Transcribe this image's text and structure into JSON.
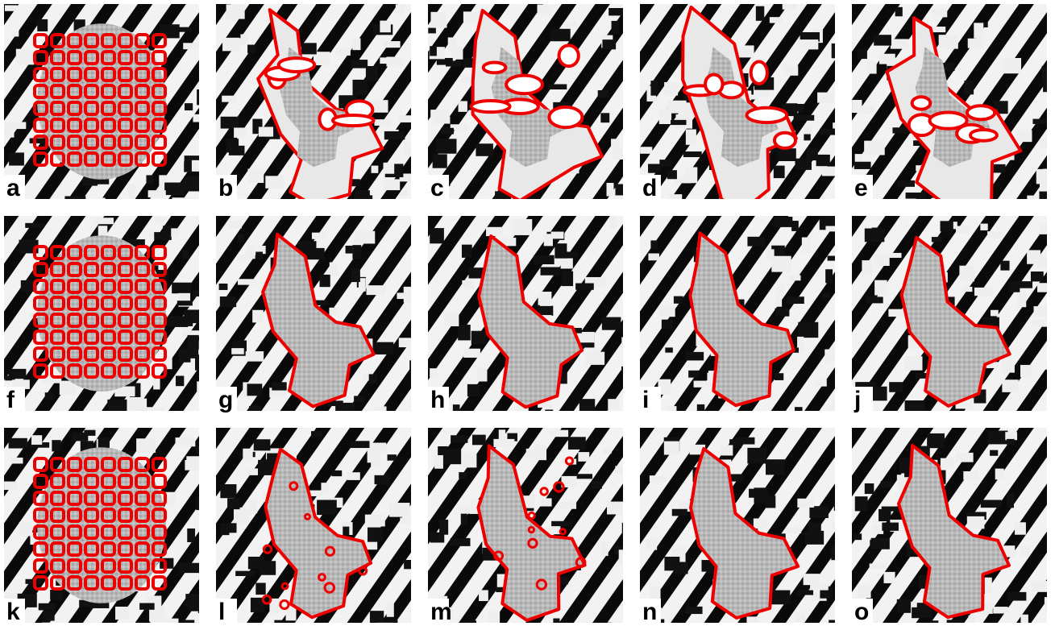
{
  "panels": [
    "a",
    "b",
    "c",
    "d",
    "e",
    "f",
    "g",
    "h",
    "i",
    "j",
    "k",
    "l",
    "m",
    "n",
    "o"
  ]
}
